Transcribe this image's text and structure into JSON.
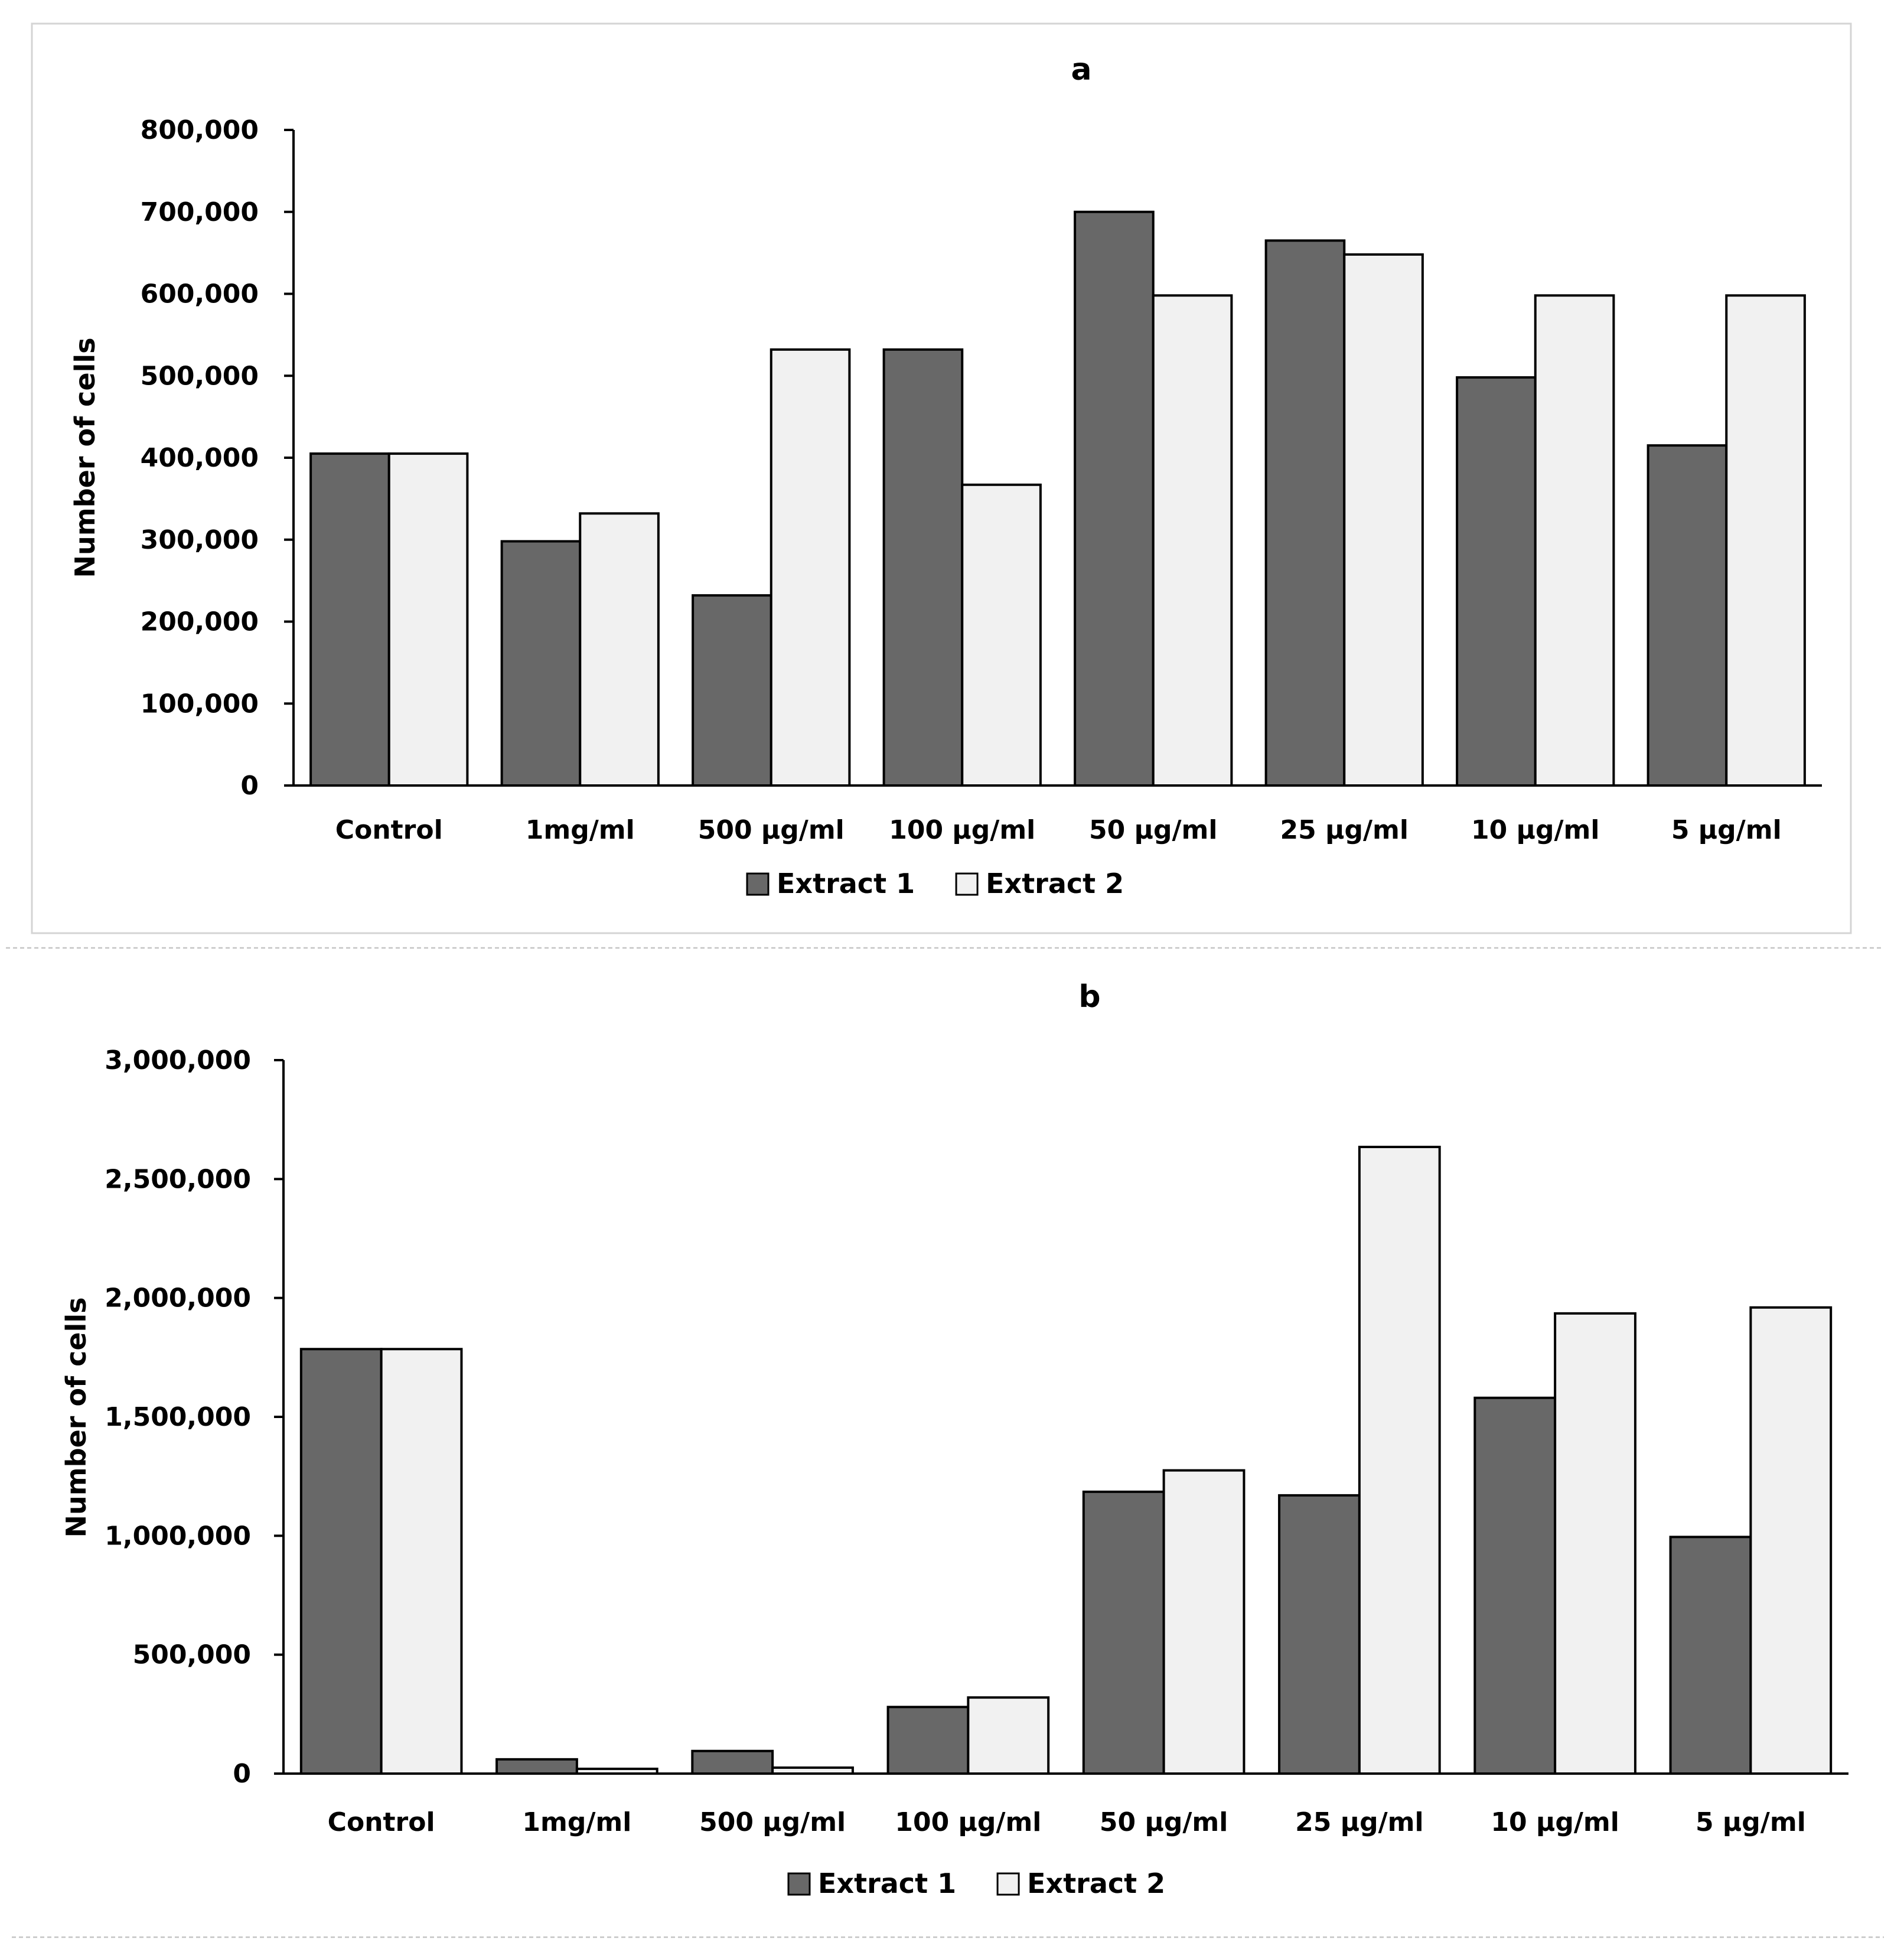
{
  "colors": {
    "extract1": "#686868",
    "extract2": "#f1f1f1",
    "axis": "#000000"
  },
  "chart_data": [
    {
      "id": "a",
      "type": "bar",
      "title": "a",
      "xlabel": "",
      "ylabel": "Number of cells",
      "ylim": [
        0,
        800000
      ],
      "yticks": [
        0,
        100000,
        200000,
        300000,
        400000,
        500000,
        600000,
        700000,
        800000
      ],
      "ytick_labels": [
        "0",
        "100,000",
        "200,000",
        "300,000",
        "400,000",
        "500,000",
        "600,000",
        "700,000",
        "800,000"
      ],
      "categories": [
        "Control",
        "1mg/ml",
        "500 µg/ml",
        "100 µg/ml",
        "50 µg/ml",
        "25 µg/ml",
        "10 µg/ml",
        "5 µg/ml"
      ],
      "series": [
        {
          "name": "Extract 1",
          "values": [
            405000,
            298000,
            232000,
            532000,
            700000,
            665000,
            498000,
            415000
          ]
        },
        {
          "name": "Extract 2",
          "values": [
            405000,
            332000,
            532000,
            367000,
            598000,
            648000,
            598000,
            598000
          ]
        }
      ],
      "legend": "bottom-center"
    },
    {
      "id": "b",
      "type": "bar",
      "title": "b",
      "xlabel": "",
      "ylabel": "Number of cells",
      "ylim": [
        0,
        3000000
      ],
      "yticks": [
        0,
        500000,
        1000000,
        1500000,
        2000000,
        2500000,
        3000000
      ],
      "ytick_labels": [
        "0",
        "500,000",
        "1,000,000",
        "1,500,000",
        "2,000,000",
        "2,500,000",
        "3,000,000"
      ],
      "categories": [
        "Control",
        "1mg/ml",
        "500 µg/ml",
        "100 µg/ml",
        "50 µg/ml",
        "25 µg/ml",
        "10 µg/ml",
        "5 µg/ml"
      ],
      "series": [
        {
          "name": "Extract 1",
          "values": [
            1785000,
            60000,
            95000,
            280000,
            1185000,
            1170000,
            1580000,
            995000
          ]
        },
        {
          "name": "Extract 2",
          "values": [
            1785000,
            20000,
            25000,
            320000,
            1275000,
            2635000,
            1935000,
            1960000
          ]
        }
      ],
      "legend": "bottom-center"
    }
  ]
}
